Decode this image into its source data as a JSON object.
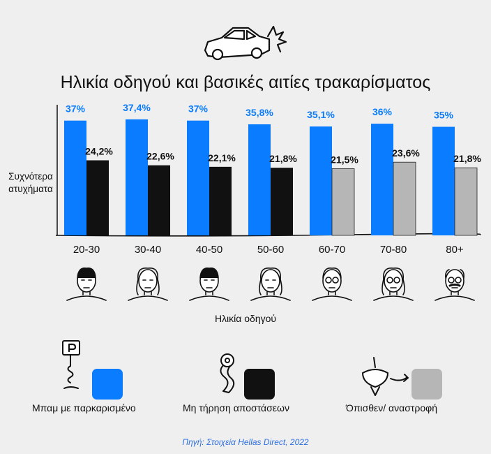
{
  "header": {
    "title": "Ηλικία οδηγού και βασικές αιτίες τρακαρίσματος",
    "header_icon": "crashed-car-icon"
  },
  "chart_data": {
    "type": "bar",
    "title": "Ηλικία οδηγού και βασικές αιτίες τρακαρίσματος",
    "ylabel": "Συχνότερα ατυχήματα",
    "xlabel": "Ηλικία οδηγού",
    "categories": [
      "20-30",
      "30-40",
      "40-50",
      "50-60",
      "60-70",
      "70-80",
      "80+"
    ],
    "ylim": [
      0,
      40
    ],
    "series": [
      {
        "name": "",
        "color": "#0a7cff",
        "values": [
          37,
          37.4,
          37,
          35.8,
          35.1,
          36,
          35
        ],
        "labels": [
          "37%",
          "37,4%",
          "37%",
          "35,8%",
          "35,1%",
          "36%",
          "35%"
        ]
      },
      {
        "name": "",
        "values": [
          24.2,
          22.6,
          22.1,
          21.8,
          21.5,
          23.6,
          21.8
        ],
        "labels": [
          "24,2%",
          "22,6%",
          "22,1%",
          "21,8%",
          "21,5%",
          "23,6%",
          "21,8%"
        ],
        "point_colors": [
          "#111111",
          "#111111",
          "#111111",
          "#111111",
          "#b6b6b6",
          "#b6b6b6",
          "#b6b6b6"
        ]
      }
    ],
    "grid": false,
    "legend_position": "bottom"
  },
  "age_icons": [
    "young-man-icon",
    "young-woman-icon",
    "middle-aged-man-icon",
    "middle-aged-woman-icon",
    "older-man-glasses-icon",
    "older-woman-glasses-icon",
    "elderly-man-mustache-icon"
  ],
  "legend": {
    "items": [
      {
        "label": "Μπαμ με παρκαρισμένο",
        "color": "#0a7cff",
        "icon": "parking-sign-icon"
      },
      {
        "label": "Μη τήρηση αποστάσεων",
        "color": "#111111",
        "icon": "measuring-tape-icon"
      },
      {
        "label": "Όπισθεν/ αναστροφή",
        "color": "#b6b6b6",
        "icon": "spinning-top-icon"
      }
    ]
  },
  "source": {
    "text": "Πηγή: Στοιχεία Hellas Direct, 2022"
  }
}
